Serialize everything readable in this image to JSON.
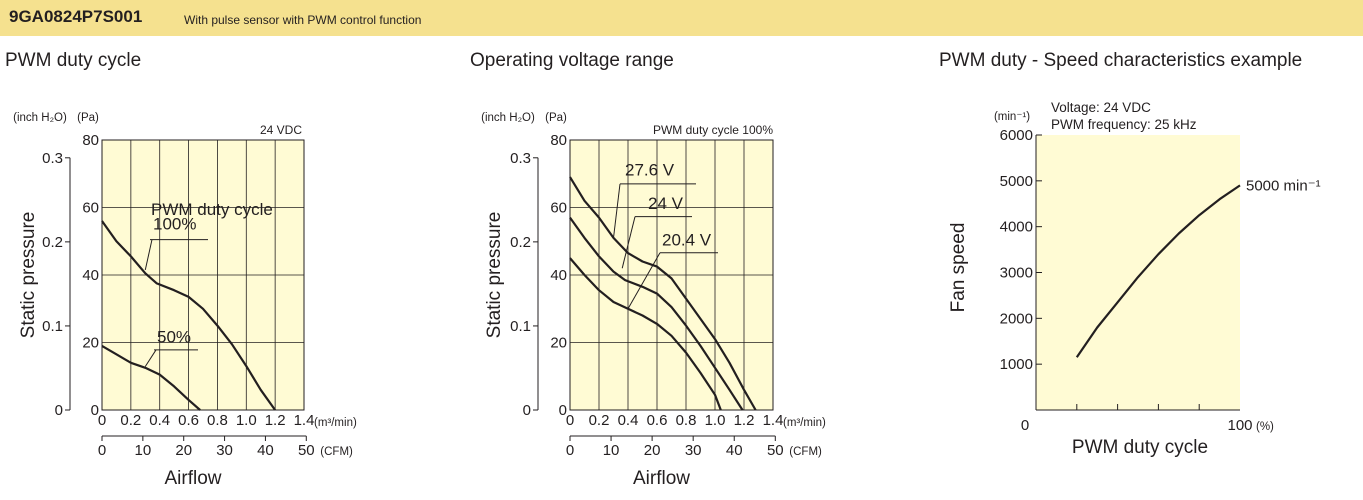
{
  "header": {
    "model": "9GA0824P7S001",
    "description": "With pulse sensor with PWM control function"
  },
  "colors": {
    "banner": "#f5e18f",
    "plot_bg": "#fffbd4",
    "ink": "#231f20"
  },
  "sections": [
    "PWM duty cycle",
    "Operating voltage range",
    "PWM duty - Speed characteristics example"
  ],
  "chart_data": [
    {
      "type": "line",
      "section": "PWM duty cycle",
      "annotation": "24 VDC",
      "xlabel": "Airflow",
      "ylabel": "Static pressure",
      "x_unit": "(m³/min)",
      "x2_unit": "(CFM)",
      "y_unit": "(Pa)",
      "y2_unit": "(inch H₂O)",
      "xlim": [
        0,
        1.4
      ],
      "ylim": [
        0,
        80
      ],
      "x_ticks": [
        0,
        0.2,
        0.4,
        0.6,
        0.8,
        1.0,
        1.2,
        1.4
      ],
      "x_tick_labels": [
        "0",
        "0.2",
        "0.4",
        "0.6",
        "0.8",
        "1.0",
        "1.2",
        "1.4"
      ],
      "y_ticks": [
        0,
        20,
        40,
        60,
        80
      ],
      "x2_ticks": [
        0,
        10,
        20,
        30,
        40,
        50
      ],
      "y2_ticks": [
        0,
        0.1,
        0.2,
        0.3
      ],
      "y2_tick_labels": [
        "0",
        "0.1",
        "0.2",
        "0.3"
      ],
      "legend_title": "PWM duty cycle",
      "grid": true,
      "series": [
        {
          "name": "100%",
          "points": [
            [
              0,
              56
            ],
            [
              0.1,
              50
            ],
            [
              0.2,
              45.5
            ],
            [
              0.3,
              40.5
            ],
            [
              0.38,
              37.5
            ],
            [
              0.5,
              35.5
            ],
            [
              0.6,
              33.5
            ],
            [
              0.7,
              30
            ],
            [
              0.8,
              25
            ],
            [
              0.9,
              19.5
            ],
            [
              1.0,
              13
            ],
            [
              1.1,
              6
            ],
            [
              1.2,
              0
            ]
          ]
        },
        {
          "name": "50%",
          "points": [
            [
              0,
              19
            ],
            [
              0.1,
              16.5
            ],
            [
              0.2,
              14
            ],
            [
              0.3,
              12.5
            ],
            [
              0.4,
              10.5
            ],
            [
              0.5,
              7
            ],
            [
              0.6,
              3
            ],
            [
              0.68,
              0
            ]
          ]
        }
      ]
    },
    {
      "type": "line",
      "section": "Operating voltage range",
      "annotation": "PWM duty cycle 100%",
      "xlabel": "Airflow",
      "ylabel": "Static pressure",
      "x_unit": "(m³/min)",
      "x2_unit": "(CFM)",
      "y_unit": "(Pa)",
      "y2_unit": "(inch H₂O)",
      "xlim": [
        0,
        1.4
      ],
      "ylim": [
        0,
        80
      ],
      "x_ticks": [
        0,
        0.2,
        0.4,
        0.6,
        0.8,
        1.0,
        1.2,
        1.4
      ],
      "x_tick_labels": [
        "0",
        "0.2",
        "0.4",
        "0.6",
        "0.8",
        "1.0",
        "1.2",
        "1.4"
      ],
      "y_ticks": [
        0,
        20,
        40,
        60,
        80
      ],
      "x2_ticks": [
        0,
        10,
        20,
        30,
        40,
        50
      ],
      "y2_ticks": [
        0,
        0.1,
        0.2,
        0.3
      ],
      "y2_tick_labels": [
        "0",
        "0.1",
        "0.2",
        "0.3"
      ],
      "grid": true,
      "series": [
        {
          "name": "27.6 V",
          "points": [
            [
              0,
              69
            ],
            [
              0.1,
              62
            ],
            [
              0.2,
              57
            ],
            [
              0.3,
              51
            ],
            [
              0.4,
              46.5
            ],
            [
              0.5,
              44
            ],
            [
              0.6,
              42.5
            ],
            [
              0.7,
              39
            ],
            [
              0.8,
              33
            ],
            [
              0.9,
              27
            ],
            [
              1.0,
              21
            ],
            [
              1.1,
              14
            ],
            [
              1.2,
              6
            ],
            [
              1.28,
              0
            ]
          ]
        },
        {
          "name": "24 V",
          "points": [
            [
              0,
              57
            ],
            [
              0.1,
              51
            ],
            [
              0.2,
              45.5
            ],
            [
              0.3,
              41
            ],
            [
              0.38,
              38.5
            ],
            [
              0.5,
              36.5
            ],
            [
              0.6,
              34.5
            ],
            [
              0.7,
              30.5
            ],
            [
              0.8,
              25
            ],
            [
              0.9,
              19
            ],
            [
              1.0,
              12.5
            ],
            [
              1.1,
              6
            ],
            [
              1.19,
              0
            ]
          ]
        },
        {
          "name": "20.4 V",
          "points": [
            [
              0,
              45
            ],
            [
              0.1,
              40
            ],
            [
              0.2,
              35.5
            ],
            [
              0.3,
              32
            ],
            [
              0.4,
              30
            ],
            [
              0.5,
              28
            ],
            [
              0.6,
              25.5
            ],
            [
              0.7,
              22
            ],
            [
              0.8,
              17
            ],
            [
              0.9,
              11
            ],
            [
              1.0,
              4.5
            ],
            [
              1.04,
              0
            ]
          ]
        }
      ]
    },
    {
      "type": "line",
      "section": "PWM duty - Speed characteristics example",
      "annotation_lines": [
        "Voltage: 24 VDC",
        "PWM frequency: 25 kHz"
      ],
      "xlabel": "PWM duty cycle",
      "ylabel": "Fan speed",
      "x_unit": "(%)",
      "y_unit": "(min⁻¹)",
      "xlim": [
        0,
        100
      ],
      "ylim": [
        0,
        6000
      ],
      "x_ticks": [
        0,
        100
      ],
      "y_ticks": [
        1000,
        2000,
        3000,
        4000,
        5000,
        6000
      ],
      "grid": false,
      "series": [
        {
          "name": "5000 min⁻¹",
          "points": [
            [
              20,
              1150
            ],
            [
              30,
              1800
            ],
            [
              40,
              2350
            ],
            [
              50,
              2900
            ],
            [
              60,
              3400
            ],
            [
              70,
              3850
            ],
            [
              80,
              4250
            ],
            [
              90,
              4600
            ],
            [
              100,
              4900
            ]
          ]
        }
      ]
    }
  ]
}
